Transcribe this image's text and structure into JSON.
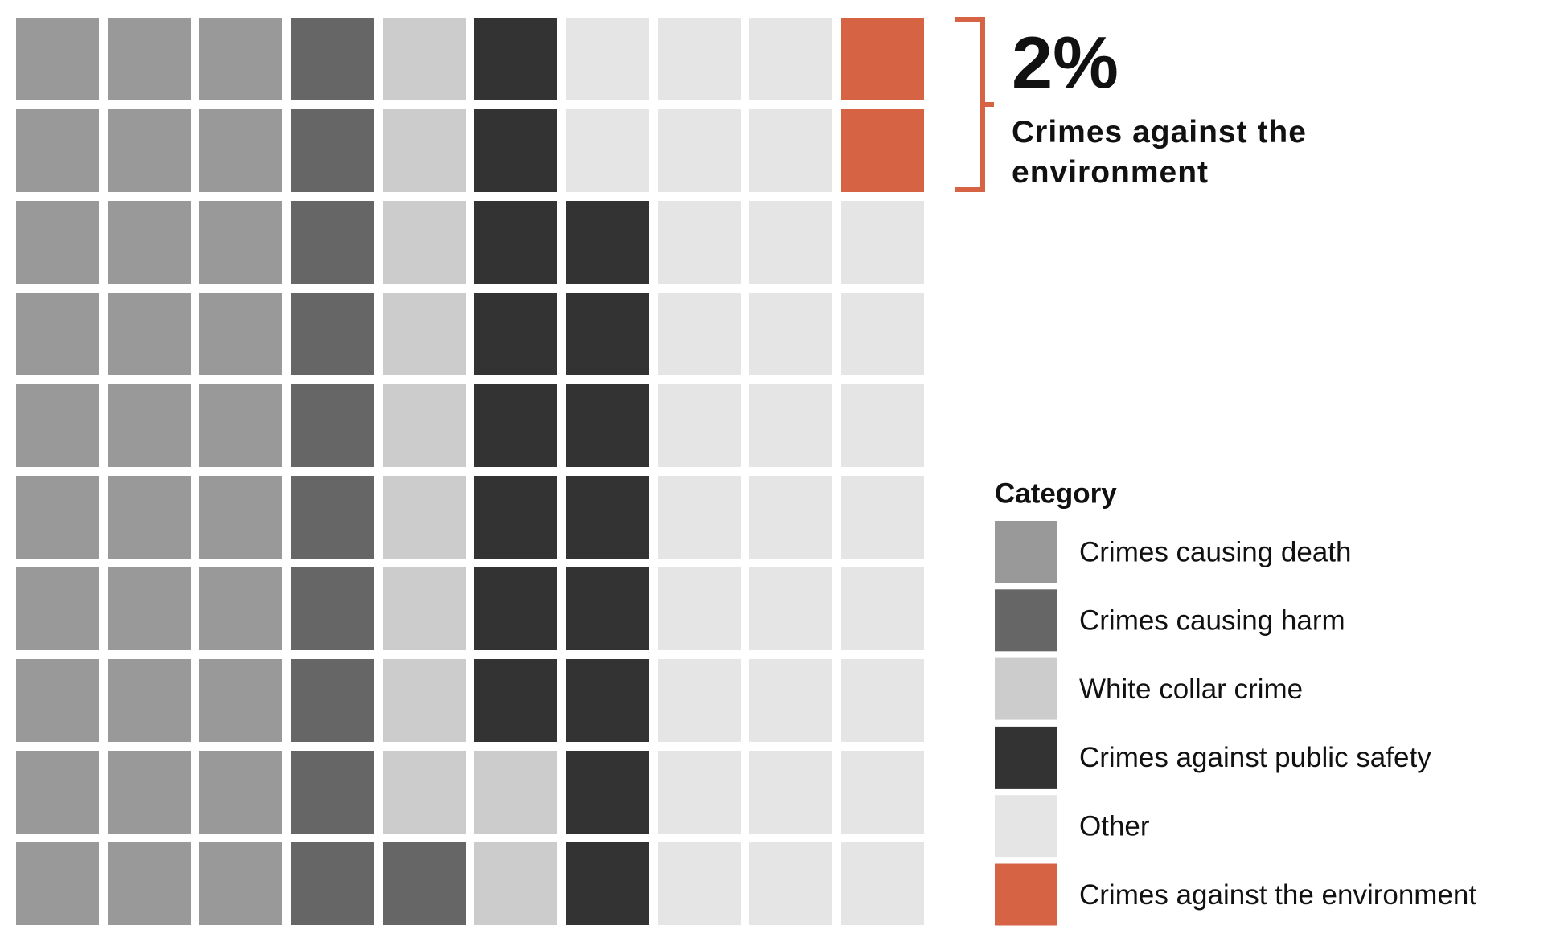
{
  "chart_data": {
    "type": "waffle",
    "categories": [
      "Crimes causing death",
      "Crimes causing harm",
      "White collar crime",
      "Crimes against public safety",
      "Other",
      "Crimes against the environment"
    ],
    "values": [
      30,
      11,
      11,
      16,
      30,
      2
    ],
    "colors": [
      "#999999",
      "#666666",
      "#cccccc",
      "#333333",
      "#e5e5e5",
      "#d66444"
    ],
    "legend_title": "Category",
    "annotation": {
      "text": "2%",
      "caption": "Crimes against the environment"
    }
  }
}
